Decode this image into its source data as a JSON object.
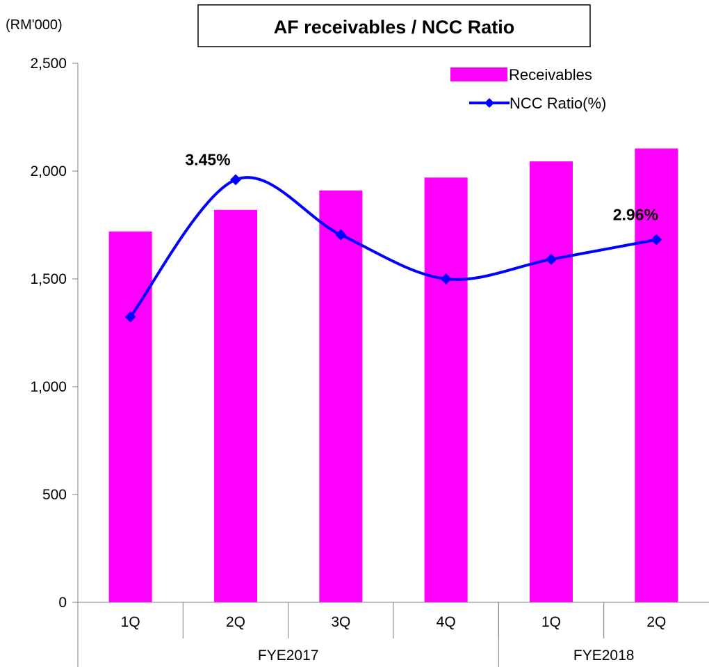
{
  "chart_data": {
    "type": "bar",
    "title": "AF receivables / NCC Ratio",
    "unit_label": "(RM'000)",
    "categories": [
      "1Q",
      "2Q",
      "3Q",
      "4Q",
      "1Q",
      "2Q"
    ],
    "groups": [
      {
        "label": "FYE2017",
        "span": [
          0,
          3
        ]
      },
      {
        "label": "FYE2018",
        "span": [
          4,
          5
        ]
      }
    ],
    "ylim": [
      0,
      2500
    ],
    "yticks": [
      0,
      500,
      1000,
      1500,
      2000,
      2500
    ],
    "ytick_labels": [
      "0",
      "500",
      "1,000",
      "1,500",
      "2,000",
      "2,500"
    ],
    "series": [
      {
        "name": "Receivables",
        "type": "bar",
        "color": "#ff00ff",
        "values": [
          1720,
          1820,
          1910,
          1970,
          2045,
          2105
        ]
      },
      {
        "name": "NCC Ratio(%)",
        "type": "line",
        "color": "#0000ff",
        "smooth": true,
        "marker": "diamond",
        "values": [
          2.33,
          3.45,
          3.0,
          2.64,
          2.8,
          2.96
        ]
      }
    ],
    "line_axis_hidden": true,
    "line_ylim": [
      0,
      4.4
    ],
    "annotations": [
      {
        "series": 1,
        "index": 1,
        "text": "3.45%"
      },
      {
        "series": 1,
        "index": 5,
        "text": "2.96%"
      }
    ],
    "legend_position": "top-right",
    "grid": false
  }
}
